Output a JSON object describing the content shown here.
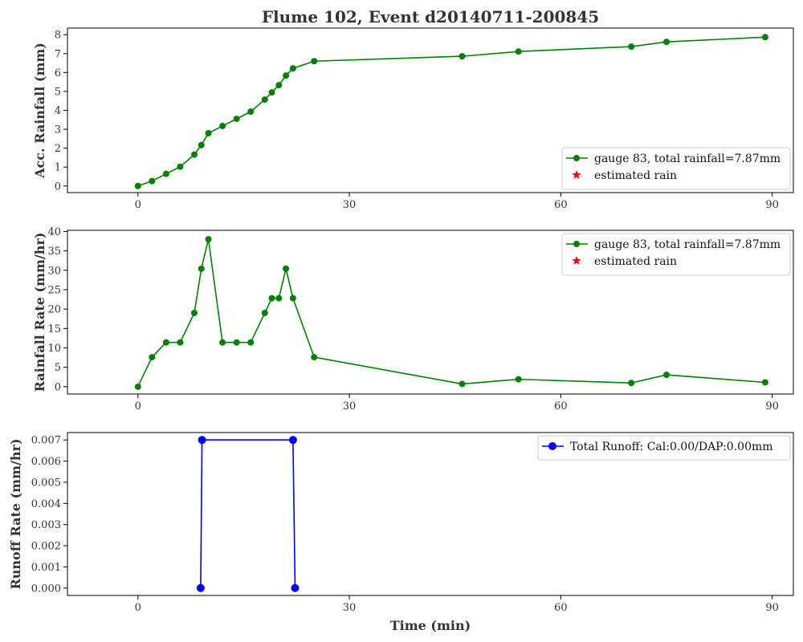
{
  "figure": {
    "title": "Flume 102, Event d20140711-200845",
    "xlabel": "Time (min)"
  },
  "chart_data": [
    {
      "type": "line",
      "ylabel": "Acc. Rainfall (mm)",
      "xlim": [
        -10,
        93
      ],
      "ylim": [
        -0.35,
        8.35
      ],
      "xticks": [
        0,
        30,
        60,
        90
      ],
      "yticks": [
        0,
        1,
        2,
        3,
        4,
        5,
        6,
        7,
        8
      ],
      "legend_position": "lower-right",
      "series": [
        {
          "name": "gauge 83, total rainfall=7.87mm",
          "color": "#008000",
          "marker": "circle",
          "x": [
            0,
            2,
            4,
            6,
            8,
            9,
            10,
            12,
            14,
            16,
            18,
            19,
            20,
            21,
            22,
            25,
            46,
            54,
            70,
            75,
            89
          ],
          "y": [
            0,
            0.26,
            0.64,
            1.02,
            1.66,
            2.16,
            2.79,
            3.17,
            3.55,
            3.93,
            4.57,
            4.95,
            5.33,
            5.84,
            6.22,
            6.6,
            6.86,
            7.11,
            7.37,
            7.62,
            7.87
          ]
        },
        {
          "name": "estimated rain",
          "color": "#ff0000",
          "marker": "star",
          "x": [],
          "y": []
        }
      ]
    },
    {
      "type": "line",
      "ylabel": "Rainfall Rate (mm/hr)",
      "xlim": [
        -10,
        93
      ],
      "ylim": [
        -1.9,
        40.3
      ],
      "xticks": [
        0,
        30,
        60,
        90
      ],
      "yticks": [
        0,
        5,
        10,
        15,
        20,
        25,
        30,
        35,
        40
      ],
      "legend_position": "upper-right",
      "series": [
        {
          "name": "gauge 83, total rainfall=7.87mm",
          "color": "#008000",
          "marker": "circle",
          "x": [
            0,
            2,
            4,
            6,
            8,
            9,
            10,
            12,
            14,
            16,
            18,
            19,
            20,
            21,
            22,
            25,
            46,
            54,
            70,
            75,
            89
          ],
          "y": [
            0,
            7.6,
            11.4,
            11.4,
            19.0,
            30.4,
            38.0,
            11.4,
            11.4,
            11.4,
            19.0,
            22.8,
            22.8,
            30.4,
            22.8,
            7.6,
            0.7,
            1.9,
            0.95,
            3.05,
            1.1
          ]
        },
        {
          "name": "estimated rain",
          "color": "#ff0000",
          "marker": "star",
          "x": [],
          "y": []
        }
      ]
    },
    {
      "type": "line",
      "ylabel": "Runoff Rate (mm/hr)",
      "xlim": [
        -10,
        93
      ],
      "ylim": [
        -0.00035,
        0.00735
      ],
      "xticks": [
        0,
        30,
        60,
        90
      ],
      "yticks": [
        0,
        0.001,
        0.002,
        0.003,
        0.004,
        0.005,
        0.006,
        0.007
      ],
      "ytick_labels": [
        "0.000",
        "0.001",
        "0.002",
        "0.003",
        "0.004",
        "0.005",
        "0.006",
        "0.007"
      ],
      "legend_position": "upper-right",
      "series": [
        {
          "name": "Total Runoff: Cal:0.00/DAP:0.00mm",
          "color": "#0000ff",
          "marker": "circle-large",
          "x": [
            8.9,
            9.1,
            22.0,
            22.3
          ],
          "y": [
            0,
            0.007,
            0.007,
            0
          ]
        }
      ]
    }
  ]
}
